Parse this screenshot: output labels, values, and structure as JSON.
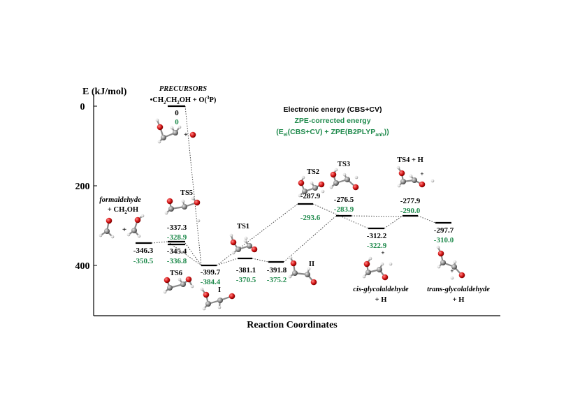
{
  "axes": {
    "ylabel": "E (kJ/mol)",
    "xlabel": "Reaction Coordinates",
    "ticks": [
      "0",
      "200",
      "400"
    ]
  },
  "legend": {
    "line1": "Electronic energy (CBS+CV)",
    "line2": "ZPE-corrected energy",
    "line3_a": "(E",
    "line3_sub1": "el",
    "line3_b": "(CBS+CV) + ZPE(B2PLYP",
    "line3_sub2": "anh",
    "line3_c": "))"
  },
  "precursors": {
    "title": "PRECURSORS",
    "formula_a": "•CH",
    "formula_sub1": "2",
    "formula_b": "CH",
    "formula_sub2": "2",
    "formula_c": "OH + O(",
    "formula_sup": "3",
    "formula_d": "P)",
    "elec": "0",
    "zpe": "0"
  },
  "species": {
    "formaldehyde": {
      "name": "formaldehyde",
      "partner_a": "+ CH",
      "partner_sub": "2",
      "partner_b": "OH",
      "elec": "-346.3",
      "zpe": "-350.5"
    },
    "ts5": {
      "name": "TS5",
      "elec": "-337.3",
      "zpe": "-328.9"
    },
    "ts6": {
      "name": "TS6",
      "elec": "-345.4",
      "zpe": "-336.8"
    },
    "i": {
      "name": "I",
      "elec": "-399.7",
      "zpe": "-384.4"
    },
    "ts1": {
      "name": "TS1",
      "elec": "-381.1",
      "zpe": "-370.5"
    },
    "ii": {
      "name": "II",
      "elec": "-391.8",
      "zpe": "-375.2"
    },
    "ts2": {
      "name": "TS2",
      "elec": "-287.9",
      "zpe": "-293.6"
    },
    "ts3": {
      "name": "TS3",
      "elec": "-276.5",
      "zpe": "-283.9"
    },
    "cis": {
      "name": "cis-glycolaldehyde",
      "partner": "+ H",
      "elec": "-312.2",
      "zpe": "-322.9"
    },
    "ts4": {
      "name": "TS4 + H",
      "elec": "-277.9",
      "zpe": "-290.0"
    },
    "trans": {
      "name": "trans-glycolaldehyde",
      "partner": "+ H",
      "elec": "-297.7",
      "zpe": "-310.0"
    }
  },
  "plus_sign": "+",
  "colors": {
    "zpe": "#1f8a4c",
    "oxygen": "#cc1111",
    "carbon": "#7a7a7a",
    "hydrogen": "#dcdcdc"
  }
}
